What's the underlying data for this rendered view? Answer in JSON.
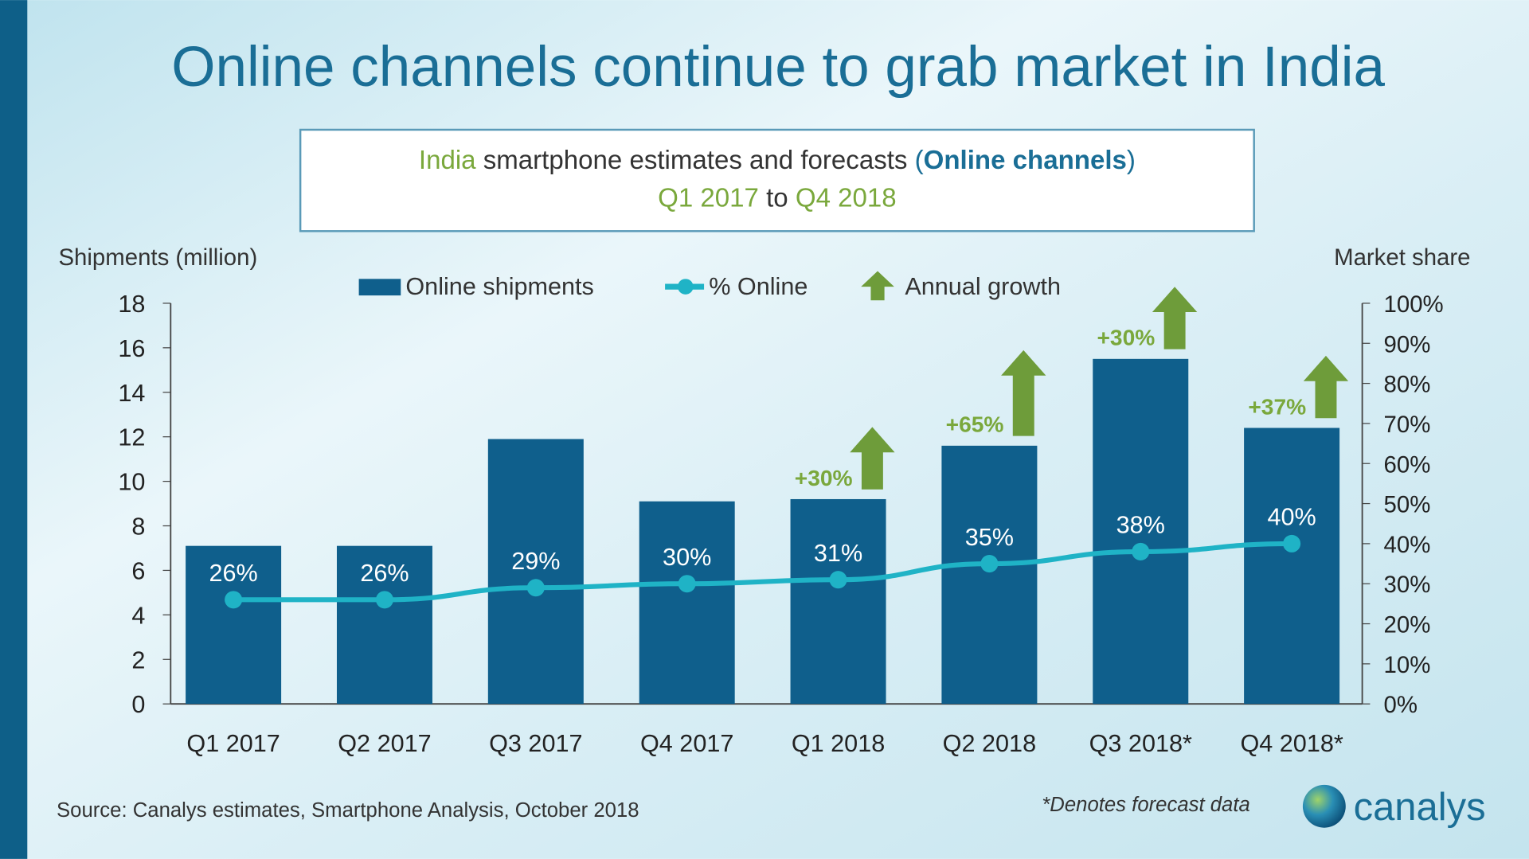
{
  "title": "Online channels continue to grab market in India",
  "subtitle": {
    "part1": "India",
    "part2": " smartphone  estimates and forecasts ",
    "part3": "(",
    "part4": "Online channels",
    "part5": ")",
    "line2_a": "Q1 2017",
    "line2_b": " to ",
    "line2_c": "Q4 2018"
  },
  "footer": {
    "source": "Source:  Canalys estimates, Smartphone  Analysis, October 2018",
    "forecast_note": "*Denotes forecast data",
    "logo_text": "canalys"
  },
  "colors": {
    "bar": "#0f5f8c",
    "line": "#1fb3c6",
    "arrow": "#6e9c3a",
    "title": "#1a6e96",
    "green_text": "#7aa83c"
  },
  "chart_data": {
    "type": "bar",
    "categories": [
      "Q1 2017",
      "Q2 2017",
      "Q3 2017",
      "Q4 2017",
      "Q1 2018",
      "Q2 2018",
      "Q3 2018*",
      "Q4 2018*"
    ],
    "ylabel": "Shipments (million)",
    "y2label": "Market share",
    "ylim": [
      0,
      18
    ],
    "yticks": [
      "0",
      "2",
      "4",
      "6",
      "8",
      "10",
      "12",
      "14",
      "16",
      "18"
    ],
    "y2lim": [
      0,
      100
    ],
    "y2ticks": [
      "0%",
      "10%",
      "20%",
      "30%",
      "40%",
      "50%",
      "60%",
      "70%",
      "80%",
      "90%",
      "100%"
    ],
    "legend": [
      "Online shipments",
      "% Online",
      "Annual growth"
    ],
    "legend_position": "top",
    "grid": false,
    "series": [
      {
        "name": "Online shipments",
        "type": "bar",
        "values": [
          7.1,
          7.1,
          11.9,
          9.1,
          9.2,
          11.6,
          15.5,
          12.4
        ]
      },
      {
        "name": "% Online",
        "type": "line",
        "axis": "right",
        "values": [
          26,
          26,
          29,
          30,
          31,
          35,
          38,
          40
        ],
        "labels": [
          "26%",
          "26%",
          "29%",
          "30%",
          "31%",
          "35%",
          "38%",
          "40%"
        ]
      },
      {
        "name": "Annual growth",
        "type": "arrow",
        "values": [
          null,
          null,
          null,
          null,
          30,
          65,
          30,
          37
        ],
        "labels": [
          null,
          null,
          null,
          null,
          "+30%",
          "+65%",
          "+30%",
          "+37%"
        ]
      }
    ]
  }
}
